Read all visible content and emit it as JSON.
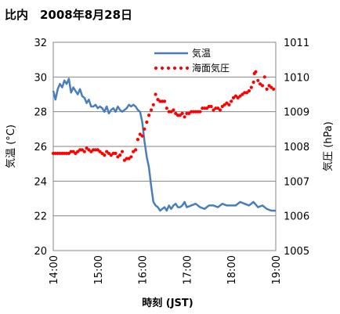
{
  "chart_data": {
    "type": "line",
    "title": "比内　2008年8月28日",
    "xlabel": "時刻 (JST)",
    "ylabel_left": "気温 (°C)",
    "ylabel_right": "気圧 (hPa)",
    "x_ticks": [
      "14:00",
      "15:00",
      "16:00",
      "17:00",
      "18:00",
      "19:00"
    ],
    "xlim_hours": [
      14,
      19
    ],
    "y_left_ticks": [
      "20",
      "22",
      "24",
      "26",
      "28",
      "30",
      "32"
    ],
    "y_left_lim": [
      20,
      32
    ],
    "y_right_ticks": [
      "1005",
      "1006",
      "1007",
      "1008",
      "1009",
      "1010",
      "1011"
    ],
    "y_right_lim": [
      1005,
      1011
    ],
    "grid": "horizontal",
    "legend_position": "top-right",
    "series": [
      {
        "name": "気温",
        "axis": "left",
        "style": "solid-line",
        "color": "#4a7ebb",
        "x_hours": [
          14.0,
          14.05,
          14.1,
          14.15,
          14.2,
          14.25,
          14.3,
          14.35,
          14.4,
          14.45,
          14.5,
          14.55,
          14.6,
          14.65,
          14.7,
          14.75,
          14.8,
          14.85,
          14.9,
          14.95,
          15.0,
          15.05,
          15.1,
          15.15,
          15.2,
          15.25,
          15.3,
          15.35,
          15.4,
          15.45,
          15.5,
          15.55,
          15.6,
          15.65,
          15.7,
          15.75,
          15.8,
          15.85,
          15.9,
          15.95,
          16.0,
          16.05,
          16.1,
          16.15,
          16.2,
          16.25,
          16.3,
          16.35,
          16.4,
          16.45,
          16.5,
          16.55,
          16.6,
          16.65,
          16.7,
          16.75,
          16.8,
          16.85,
          16.9,
          16.95,
          17.0,
          17.1,
          17.2,
          17.3,
          17.4,
          17.5,
          17.6,
          17.7,
          17.8,
          17.9,
          18.0,
          18.1,
          18.2,
          18.3,
          18.4,
          18.5,
          18.6,
          18.7,
          18.8,
          18.9,
          19.0
        ],
        "values": [
          29.2,
          28.7,
          29.3,
          29.6,
          29.4,
          29.8,
          29.6,
          29.9,
          29.1,
          29.4,
          29.2,
          29.0,
          29.3,
          28.9,
          28.8,
          28.5,
          28.7,
          28.3,
          28.3,
          28.4,
          28.2,
          28.3,
          28.2,
          28.0,
          28.3,
          27.9,
          28.1,
          28.2,
          28.0,
          28.3,
          28.1,
          28.0,
          28.1,
          28.2,
          28.4,
          28.3,
          28.4,
          28.3,
          28.1,
          28.0,
          27.4,
          26.3,
          25.4,
          24.8,
          23.7,
          22.8,
          22.6,
          22.5,
          22.3,
          22.4,
          22.5,
          22.3,
          22.6,
          22.4,
          22.6,
          22.7,
          22.5,
          22.5,
          22.6,
          22.8,
          22.5,
          22.6,
          22.7,
          22.5,
          22.4,
          22.6,
          22.6,
          22.5,
          22.7,
          22.6,
          22.6,
          22.6,
          22.8,
          22.7,
          22.6,
          22.8,
          22.5,
          22.6,
          22.4,
          22.3,
          22.3
        ]
      },
      {
        "name": "海面気圧",
        "axis": "right",
        "style": "dotted",
        "color": "#ff0000",
        "x_hours": [
          14.0,
          14.05,
          14.1,
          14.15,
          14.2,
          14.25,
          14.3,
          14.35,
          14.4,
          14.45,
          14.5,
          14.55,
          14.6,
          14.65,
          14.7,
          14.75,
          14.8,
          14.85,
          14.9,
          14.95,
          15.0,
          15.05,
          15.1,
          15.15,
          15.2,
          15.25,
          15.3,
          15.35,
          15.4,
          15.45,
          15.5,
          15.55,
          15.6,
          15.65,
          15.7,
          15.75,
          15.8,
          15.85,
          15.9,
          15.95,
          16.0,
          16.05,
          16.1,
          16.15,
          16.2,
          16.25,
          16.3,
          16.35,
          16.4,
          16.45,
          16.5,
          16.55,
          16.6,
          16.65,
          16.7,
          16.75,
          16.8,
          16.85,
          16.9,
          16.95,
          17.0,
          17.05,
          17.1,
          17.15,
          17.2,
          17.25,
          17.3,
          17.35,
          17.4,
          17.45,
          17.5,
          17.55,
          17.6,
          17.65,
          17.7,
          17.75,
          17.8,
          17.85,
          17.9,
          17.95,
          18.0,
          18.05,
          18.1,
          18.15,
          18.2,
          18.25,
          18.3,
          18.35,
          18.4,
          18.45,
          18.5,
          18.52,
          18.55,
          18.6,
          18.65,
          18.7,
          18.75,
          18.8,
          18.85,
          18.9,
          18.95
        ],
        "values": [
          1007.8,
          1007.8,
          1007.8,
          1007.8,
          1007.8,
          1007.8,
          1007.8,
          1007.8,
          1007.85,
          1007.85,
          1007.8,
          1007.85,
          1007.9,
          1007.9,
          1007.85,
          1007.95,
          1007.9,
          1007.85,
          1007.9,
          1007.9,
          1007.9,
          1007.85,
          1007.8,
          1007.75,
          1007.85,
          1007.8,
          1007.75,
          1007.8,
          1007.8,
          1007.7,
          1007.75,
          1007.85,
          1007.6,
          1007.65,
          1007.65,
          1007.7,
          1007.85,
          1007.9,
          1008.2,
          1008.35,
          1008.3,
          1008.5,
          1008.7,
          1008.9,
          1009.05,
          1009.2,
          1009.5,
          1009.35,
          1009.3,
          1009.3,
          1009.3,
          1009.1,
          1009.0,
          1009.0,
          1009.05,
          1008.95,
          1008.9,
          1008.9,
          1008.95,
          1008.85,
          1008.95,
          1008.95,
          1009.0,
          1009.0,
          1009.0,
          1009.0,
          1009.0,
          1009.1,
          1009.1,
          1009.1,
          1009.15,
          1009.15,
          1009.05,
          1009.1,
          1009.1,
          1009.05,
          1009.15,
          1009.2,
          1009.25,
          1009.2,
          1009.3,
          1009.4,
          1009.45,
          1009.4,
          1009.45,
          1009.5,
          1009.55,
          1009.55,
          1009.6,
          1009.7,
          1009.85,
          1010.1,
          1010.15,
          1009.9,
          1009.8,
          1009.75,
          1010.0,
          1009.65,
          1009.75,
          1009.7,
          1009.65
        ]
      }
    ]
  }
}
